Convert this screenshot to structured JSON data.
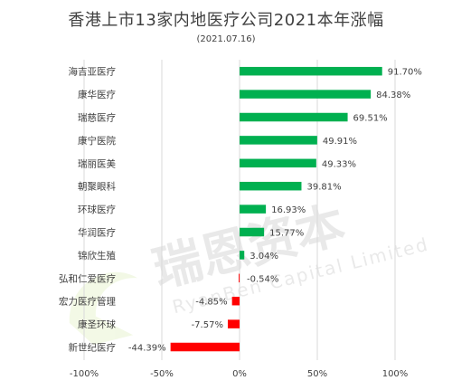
{
  "chart_data": {
    "type": "bar",
    "orientation": "horizontal",
    "title": "香港上市13家内地医疗公司2021本年涨幅",
    "subtitle": "(2021.07.16)",
    "categories": [
      "海吉亚医疗",
      "康华医疗",
      "瑞慈医疗",
      "康宁医院",
      "瑞丽医美",
      "朝聚眼科",
      "环球医疗",
      "华润医疗",
      "锦欣生殖",
      "弘和仁爱医疗",
      "宏力医疗管理",
      "康圣环球",
      "新世纪医疗"
    ],
    "values": [
      91.7,
      84.38,
      69.51,
      49.91,
      49.33,
      39.81,
      16.93,
      15.77,
      3.04,
      -0.54,
      -4.85,
      -7.57,
      -44.39
    ],
    "value_labels": [
      "91.70%",
      "84.38%",
      "69.51%",
      "49.91%",
      "49.33%",
      "39.81%",
      "16.93%",
      "15.77%",
      "3.04%",
      "-0.54%",
      "-4.85%",
      "-7.57%",
      "-44.39%"
    ],
    "x_ticks": [
      -100,
      -50,
      0,
      50,
      100
    ],
    "x_tick_labels": [
      "-100%",
      "-50%",
      "0%",
      "50%",
      "100%"
    ],
    "xlim": [
      -100,
      100
    ],
    "grid": true,
    "colors": {
      "positive": "#00b050",
      "negative": "#ff0000",
      "grid": "#d9d9d9",
      "text": "#404040"
    }
  },
  "watermark": {
    "text_cn": "瑞恩资本",
    "text_en": "RyanBen Capital Limited"
  }
}
